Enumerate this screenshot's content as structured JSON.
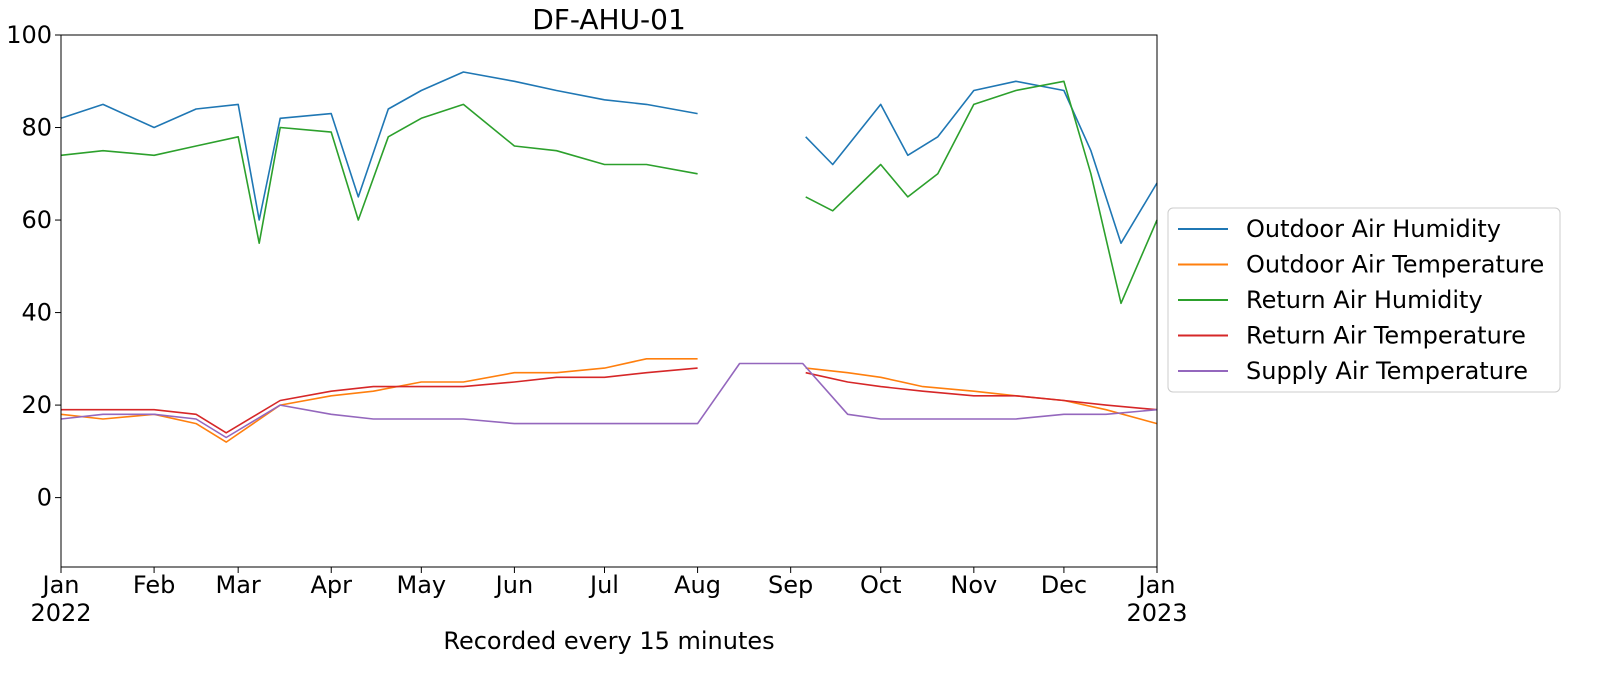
{
  "chart_data": {
    "type": "line",
    "title": "DF-AHU-01",
    "xlabel": "Recorded every 15 minutes",
    "ylabel": "",
    "ylim": [
      -15,
      100
    ],
    "yticks": [
      0,
      20,
      40,
      60,
      80,
      100
    ],
    "x_range": [
      "2022-01-01",
      "2023-01-01"
    ],
    "x_ticks": [
      {
        "date": "2022-01-01",
        "label": "Jan",
        "year": "2022"
      },
      {
        "date": "2022-02-01",
        "label": "Feb",
        "year": ""
      },
      {
        "date": "2022-03-01",
        "label": "Mar",
        "year": ""
      },
      {
        "date": "2022-04-01",
        "label": "Apr",
        "year": ""
      },
      {
        "date": "2022-05-01",
        "label": "May",
        "year": ""
      },
      {
        "date": "2022-06-01",
        "label": "Jun",
        "year": ""
      },
      {
        "date": "2022-07-01",
        "label": "Jul",
        "year": ""
      },
      {
        "date": "2022-08-01",
        "label": "Aug",
        "year": ""
      },
      {
        "date": "2022-09-01",
        "label": "Sep",
        "year": ""
      },
      {
        "date": "2022-10-01",
        "label": "Oct",
        "year": ""
      },
      {
        "date": "2022-11-01",
        "label": "Nov",
        "year": ""
      },
      {
        "date": "2022-12-01",
        "label": "Dec",
        "year": ""
      },
      {
        "date": "2023-01-01",
        "label": "Jan",
        "year": "2023"
      }
    ],
    "grid": false,
    "legend_position": "right",
    "series": [
      {
        "name": "Outdoor Air Humidity",
        "color": "#1f77b4",
        "segments": [
          {
            "x": [
              "2022-01-01",
              "2022-01-15",
              "2022-02-01",
              "2022-02-15",
              "2022-03-01",
              "2022-03-08",
              "2022-03-15",
              "2022-04-01",
              "2022-04-10",
              "2022-04-20",
              "2022-05-01",
              "2022-05-15",
              "2022-06-01",
              "2022-06-15",
              "2022-07-01",
              "2022-07-15",
              "2022-08-01"
            ],
            "y": [
              82,
              85,
              80,
              84,
              85,
              60,
              82,
              83,
              65,
              84,
              88,
              92,
              90,
              88,
              86,
              85,
              83
            ]
          },
          {
            "x": [
              "2022-09-06",
              "2022-09-15",
              "2022-10-01",
              "2022-10-10",
              "2022-10-20",
              "2022-11-01",
              "2022-11-15",
              "2022-12-01",
              "2022-12-10",
              "2022-12-20",
              "2023-01-01"
            ],
            "y": [
              78,
              72,
              85,
              74,
              78,
              88,
              90,
              88,
              75,
              55,
              68
            ]
          }
        ]
      },
      {
        "name": "Outdoor Air Temperature",
        "color": "#ff7f0e",
        "segments": [
          {
            "x": [
              "2022-01-01",
              "2022-01-15",
              "2022-02-01",
              "2022-02-15",
              "2022-02-25",
              "2022-03-15",
              "2022-04-01",
              "2022-04-15",
              "2022-05-01",
              "2022-05-15",
              "2022-06-01",
              "2022-06-15",
              "2022-07-01",
              "2022-07-15",
              "2022-08-01"
            ],
            "y": [
              18,
              17,
              18,
              16,
              12,
              20,
              22,
              23,
              25,
              25,
              27,
              27,
              28,
              30,
              30
            ]
          },
          {
            "x": [
              "2022-09-06",
              "2022-09-20",
              "2022-10-01",
              "2022-10-15",
              "2022-11-01",
              "2022-11-15",
              "2022-12-01",
              "2022-12-15",
              "2023-01-01"
            ],
            "y": [
              28,
              27,
              26,
              24,
              23,
              22,
              21,
              19,
              16
            ]
          }
        ]
      },
      {
        "name": "Return Air Humidity",
        "color": "#2ca02c",
        "segments": [
          {
            "x": [
              "2022-01-01",
              "2022-01-15",
              "2022-02-01",
              "2022-02-15",
              "2022-03-01",
              "2022-03-08",
              "2022-03-15",
              "2022-04-01",
              "2022-04-10",
              "2022-04-20",
              "2022-05-01",
              "2022-05-15",
              "2022-06-01",
              "2022-06-15",
              "2022-07-01",
              "2022-07-15",
              "2022-08-01"
            ],
            "y": [
              74,
              75,
              74,
              76,
              78,
              55,
              80,
              79,
              60,
              78,
              82,
              85,
              76,
              75,
              72,
              72,
              70
            ]
          },
          {
            "x": [
              "2022-09-06",
              "2022-09-15",
              "2022-10-01",
              "2022-10-10",
              "2022-10-20",
              "2022-11-01",
              "2022-11-15",
              "2022-12-01",
              "2022-12-10",
              "2022-12-20",
              "2023-01-01"
            ],
            "y": [
              65,
              62,
              72,
              65,
              70,
              85,
              88,
              90,
              70,
              42,
              60
            ]
          }
        ]
      },
      {
        "name": "Return Air Temperature",
        "color": "#d62728",
        "segments": [
          {
            "x": [
              "2022-01-01",
              "2022-01-15",
              "2022-02-01",
              "2022-02-15",
              "2022-02-25",
              "2022-03-15",
              "2022-04-01",
              "2022-04-15",
              "2022-05-01",
              "2022-05-15",
              "2022-06-01",
              "2022-06-15",
              "2022-07-01",
              "2022-07-15",
              "2022-08-01"
            ],
            "y": [
              19,
              19,
              19,
              18,
              14,
              21,
              23,
              24,
              24,
              24,
              25,
              26,
              26,
              27,
              28
            ]
          },
          {
            "x": [
              "2022-09-06",
              "2022-09-20",
              "2022-10-01",
              "2022-10-15",
              "2022-11-01",
              "2022-11-15",
              "2022-12-01",
              "2022-12-15",
              "2023-01-01"
            ],
            "y": [
              27,
              25,
              24,
              23,
              22,
              22,
              21,
              20,
              19
            ]
          }
        ]
      },
      {
        "name": "Supply Air Temperature",
        "color": "#9467bd",
        "segments": [
          {
            "x": [
              "2022-01-01",
              "2022-01-15",
              "2022-02-01",
              "2022-02-15",
              "2022-02-25",
              "2022-03-15",
              "2022-04-01",
              "2022-04-15",
              "2022-05-01",
              "2022-05-15",
              "2022-06-01",
              "2022-06-15",
              "2022-07-01",
              "2022-07-15",
              "2022-08-01",
              "2022-08-15",
              "2022-09-05",
              "2022-09-20",
              "2022-10-01",
              "2022-10-15",
              "2022-11-01",
              "2022-11-15",
              "2022-12-01",
              "2022-12-15",
              "2023-01-01"
            ],
            "y": [
              17,
              18,
              18,
              17,
              13,
              20,
              18,
              17,
              17,
              17,
              16,
              16,
              16,
              16,
              16,
              29,
              29,
              18,
              17,
              17,
              17,
              17,
              18,
              18,
              19
            ]
          }
        ]
      }
    ]
  }
}
